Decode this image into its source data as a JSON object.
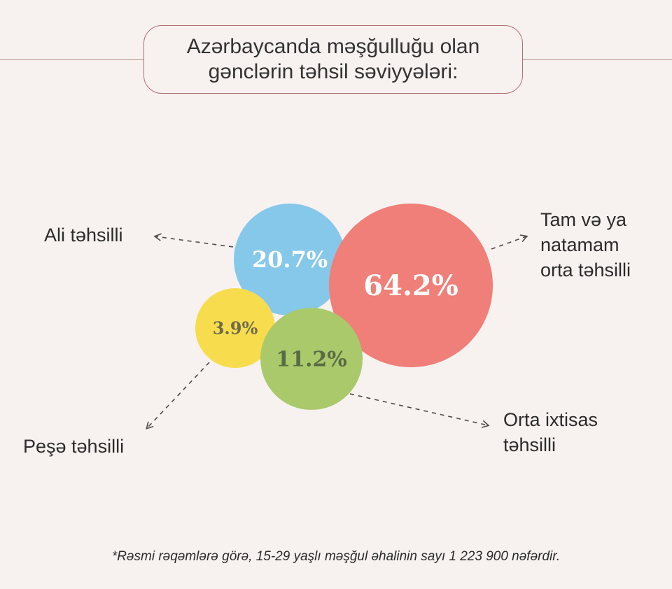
{
  "title": {
    "line1": "Azərbaycanda məşğulluğu olan",
    "line2": "gənclərin təhsil səviyyələri:"
  },
  "chart_data": {
    "type": "bubble",
    "unit": "%",
    "series": [
      {
        "label": "20.7%",
        "value": 20.7,
        "category": [
          "Ali təhsilli"
        ],
        "color": "#86c8ea",
        "text_color": "#ffffff"
      },
      {
        "label": "64.2%",
        "value": 64.2,
        "category": [
          "Tam və ya",
          "natamam",
          "orta təhsilli"
        ],
        "color": "#ef7f78",
        "text_color": "#ffffff"
      },
      {
        "label": "3.9%",
        "value": 3.9,
        "category": [
          "Peşə təhsilli"
        ],
        "color": "#f7dc4e",
        "text_color": "#6e6a4a"
      },
      {
        "label": "11.2%",
        "value": 11.2,
        "category": [
          "Orta ixtisas",
          "təhsilli"
        ],
        "color": "#a9c96b",
        "text_color": "#5a6a45"
      }
    ]
  },
  "footnote": "*Rəsmi rəqəmlərə görə, 15-29 yaşlı məşğul əhalinin sayı 1 223 900 nəfərdir."
}
